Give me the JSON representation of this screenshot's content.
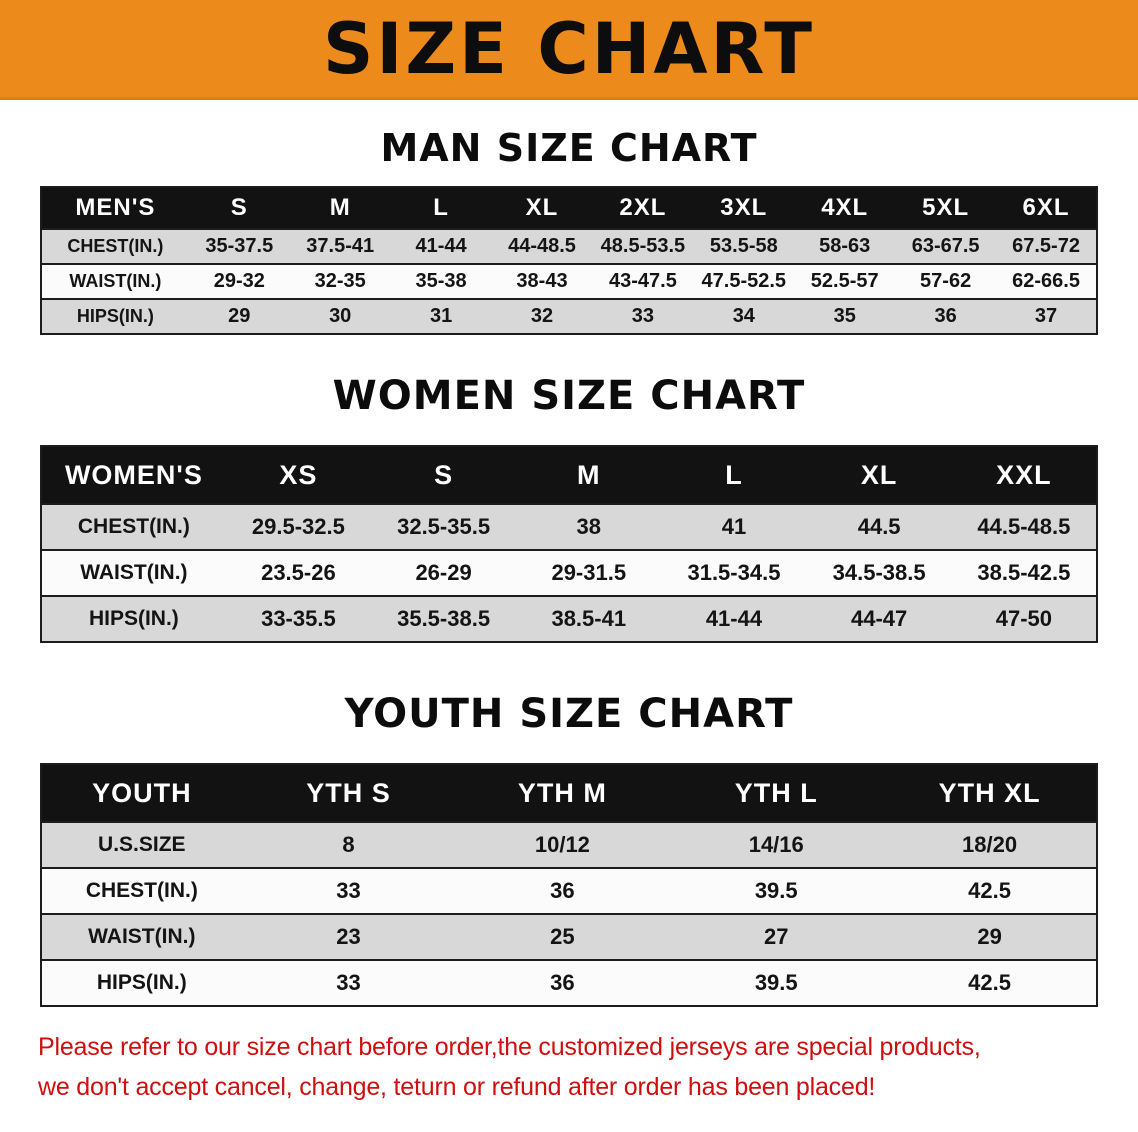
{
  "banner": {
    "title": "SIZE CHART",
    "bg_color": "#ED8A1C",
    "text_color": "#0d0d0d"
  },
  "colors": {
    "header_row_bg": "#121212",
    "header_row_text": "#ffffff",
    "gray_row_bg": "#d8d8d8",
    "white_row_bg": "#fbfbfb",
    "notice_text": "#cf0e0e"
  },
  "sections": [
    {
      "title": "MAN SIZE CHART",
      "header_label": "MEN'S",
      "columns": [
        "S",
        "M",
        "L",
        "XL",
        "2XL",
        "3XL",
        "4XL",
        "5XL",
        "6XL"
      ],
      "rows": [
        {
          "label": "CHEST(IN.)",
          "values": [
            "35-37.5",
            "37.5-41",
            "41-44",
            "44-48.5",
            "48.5-53.5",
            "53.5-58",
            "58-63",
            "63-67.5",
            "67.5-72"
          ]
        },
        {
          "label": "WAIST(IN.)",
          "values": [
            "29-32",
            "32-35",
            "35-38",
            "38-43",
            "43-47.5",
            "47.5-52.5",
            "52.5-57",
            "57-62",
            "62-66.5"
          ]
        },
        {
          "label": "HIPS(IN.)",
          "values": [
            "29",
            "30",
            "31",
            "32",
            "33",
            "34",
            "35",
            "36",
            "37"
          ]
        }
      ]
    },
    {
      "title": "WOMEN SIZE CHART",
      "header_label": "WOMEN'S",
      "columns": [
        "XS",
        "S",
        "M",
        "L",
        "XL",
        "XXL"
      ],
      "rows": [
        {
          "label": "CHEST(IN.)",
          "values": [
            "29.5-32.5",
            "32.5-35.5",
            "38",
            "41",
            "44.5",
            "44.5-48.5"
          ]
        },
        {
          "label": "WAIST(IN.)",
          "values": [
            "23.5-26",
            "26-29",
            "29-31.5",
            "31.5-34.5",
            "34.5-38.5",
            "38.5-42.5"
          ]
        },
        {
          "label": "HIPS(IN.)",
          "values": [
            "33-35.5",
            "35.5-38.5",
            "38.5-41",
            "41-44",
            "44-47",
            "47-50"
          ]
        }
      ]
    },
    {
      "title": "YOUTH SIZE CHART",
      "header_label": "YOUTH",
      "columns": [
        "YTH S",
        "YTH M",
        "YTH L",
        "YTH XL"
      ],
      "rows": [
        {
          "label": "U.S.SIZE",
          "values": [
            "8",
            "10/12",
            "14/16",
            "18/20"
          ]
        },
        {
          "label": "CHEST(IN.)",
          "values": [
            "33",
            "36",
            "39.5",
            "42.5"
          ]
        },
        {
          "label": "WAIST(IN.)",
          "values": [
            "23",
            "25",
            "27",
            "29"
          ]
        },
        {
          "label": "HIPS(IN.)",
          "values": [
            "33",
            "36",
            "39.5",
            "42.5"
          ]
        }
      ]
    }
  ],
  "footer": {
    "line1": "Please refer to our size chart before order,the customized jerseys are special products,",
    "line2": "we don't accept cancel, change, teturn or refund after order has been placed!"
  }
}
